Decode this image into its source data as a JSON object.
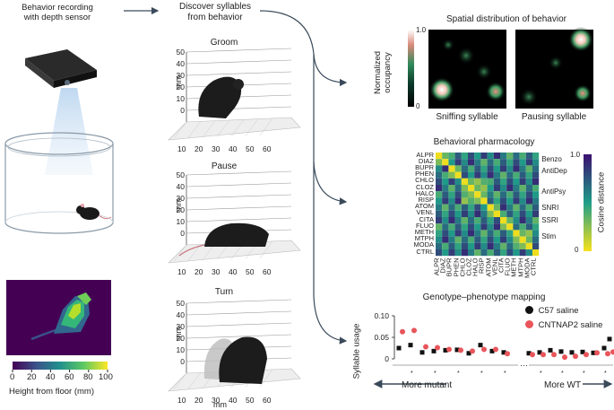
{
  "left": {
    "recording_label_line1": "Behavior recording",
    "recording_label_line2": "with depth sensor",
    "colorbar_ticks": [
      "0",
      "20",
      "40",
      "60",
      "80",
      "100"
    ],
    "colorbar_label": "Height from floor (mm)"
  },
  "middle": {
    "title_line1": "Discover syllables",
    "title_line2": "from behavior",
    "axis_unit": "mm",
    "y_ticks": [
      "50",
      "40",
      "30",
      "20",
      "10",
      "0"
    ],
    "x_ticks": [
      "10",
      "20",
      "30",
      "40",
      "50",
      "60"
    ],
    "panels": [
      {
        "title": "Groom"
      },
      {
        "title": "Pause"
      },
      {
        "title": "Turn"
      }
    ]
  },
  "spatial": {
    "title": "Spatial distribution of behavior",
    "colorbar_max": "1.0",
    "colorbar_min": "0",
    "ylabel_line1": "Normalized",
    "ylabel_line2": "occupancy",
    "maps": [
      {
        "label": "Sniffing syllable"
      },
      {
        "label": "Pausing syllable"
      }
    ]
  },
  "pharm": {
    "title": "Behavioral pharmacology",
    "drugs": [
      "ALPR",
      "DIAZ",
      "BUPR",
      "PHEN",
      "CHLO",
      "CLOZ",
      "HALO",
      "RISP",
      "ATOM",
      "VENL",
      "CITA",
      "FLUO",
      "METH",
      "MTPH",
      "MODA",
      "CTRL"
    ],
    "classes": [
      "Benzo",
      "AntiDep",
      "AntiPsy",
      "SNRI",
      "SSRI",
      "Stim"
    ],
    "colorbar_max": "1.0",
    "colorbar_min": "0",
    "colorbar_label": "Cosine distance",
    "colors": {
      "low": "#f7e11b",
      "mid": "#1f9e89",
      "high": "#3b0f70"
    }
  },
  "genotype": {
    "title": "Genotype–phenotype mapping",
    "ylabel": "Syllable usage",
    "left_arrow_label": "More mutant",
    "right_arrow_label": "More WT",
    "legend": [
      {
        "name": "C57 saline",
        "color": "#111111"
      },
      {
        "name": "CNTNAP2 saline",
        "color": "#e8555a"
      }
    ]
  },
  "chart_data": {
    "type": "scatter",
    "title": "Genotype–phenotype mapping",
    "ylabel": "Syllable usage",
    "ylim": [
      0,
      0.1
    ],
    "yticks": [
      "0.10",
      "0.05",
      "0"
    ],
    "series": [
      {
        "name": "C57 saline",
        "values": [
          0.025,
          0.032,
          0.015,
          0.018,
          0.02,
          0.021,
          0.013,
          0.032,
          0.018,
          0.015,
          0.013,
          0.015,
          0.02,
          0.017,
          0.015,
          0.016,
          0.014,
          0.025,
          0.046
        ]
      },
      {
        "name": "CNTNAP2 saline",
        "values": [
          0.063,
          0.066,
          0.028,
          0.026,
          0.022,
          0.02,
          0.018,
          0.022,
          0.022,
          0.012,
          0.01,
          0.01,
          0.01,
          0.004,
          0.006,
          0.01,
          0.014,
          0.012,
          0.016
        ]
      }
    ]
  }
}
